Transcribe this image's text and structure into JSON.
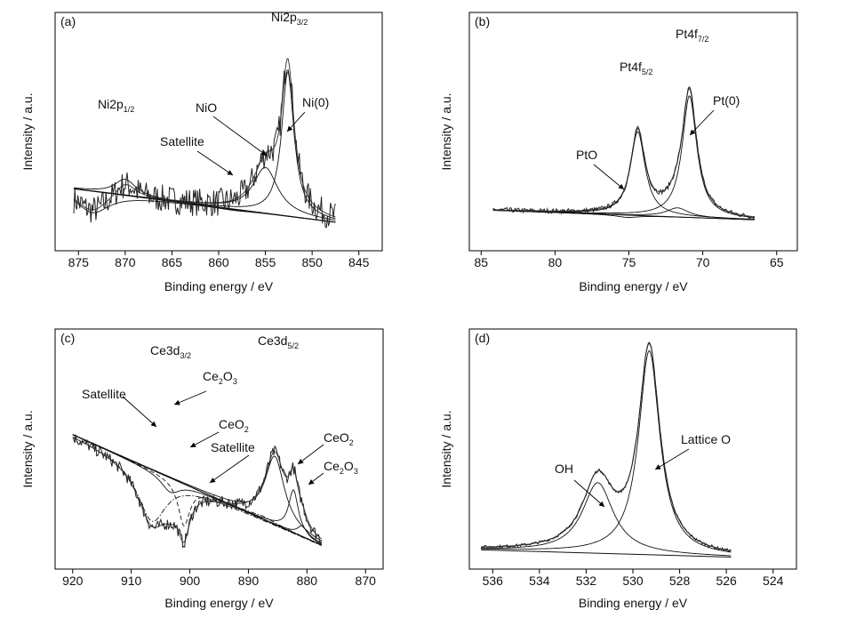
{
  "chart_data": [
    {
      "type": "line",
      "panel_label": "(a)",
      "xlabel": "Binding energy / eV",
      "ylabel": "Intensity / a.u.",
      "xlim": [
        877.5,
        842.5
      ],
      "ylim": [
        0,
        100
      ],
      "x_reversed": true,
      "xticks": [
        875,
        870,
        865,
        860,
        855,
        850,
        845
      ],
      "grid": false,
      "baseline": [
        [
          875.5,
          26
        ],
        [
          847.5,
          12
        ]
      ],
      "series": [
        {
          "name": "Ni(0)",
          "peak_x": 852.6,
          "peak_y": 75,
          "width": 0.8
        },
        {
          "name": "NiO",
          "peak_x": 855.0,
          "peak_y": 35,
          "width": 1.6
        },
        {
          "name": "Satellite",
          "peak_x": 858.5,
          "peak_y": 17,
          "width": 2.5
        },
        {
          "name": "Ni2p1/2",
          "peak_x": 870.0,
          "peak_y": 30,
          "width": 1.4
        },
        {
          "name": "",
          "peak_x": 873.5,
          "peak_y": 16,
          "width": 2.2
        }
      ],
      "annotations": [
        {
          "label": "Ni2p",
          "sub": "3/2",
          "x": 852.6,
          "y": 95
        },
        {
          "label": "Ni(0)",
          "x": 852.6,
          "y": 50
        },
        {
          "label": "NiO",
          "x": 855.0,
          "y": 60
        },
        {
          "label": "Satellite",
          "x": 858.5,
          "y": 42
        },
        {
          "label": "Ni2p",
          "sub": "1/2",
          "x": 870.0,
          "y": 60
        }
      ]
    },
    {
      "type": "line",
      "panel_label": "(b)",
      "xlabel": "Binding energy / eV",
      "ylabel": "Intensity / a.u.",
      "xlim": [
        85.8,
        63.6
      ],
      "ylim": [
        0,
        100
      ],
      "x_reversed": true,
      "xticks": [
        85,
        80,
        75,
        70,
        65
      ],
      "grid": false,
      "baseline": [
        [
          84.2,
          17
        ],
        [
          66.5,
          13
        ]
      ],
      "series": [
        {
          "name": "Pt(0)",
          "peak_x": 70.9,
          "peak_y": 65,
          "width": 0.6
        },
        {
          "name": "Pt4f5/2",
          "peak_x": 74.4,
          "peak_y": 50,
          "width": 0.6
        },
        {
          "name": "PtO",
          "peak_x": 75.1,
          "peak_y": 14,
          "width": 0.9
        },
        {
          "name": "",
          "peak_x": 71.7,
          "peak_y": 18,
          "width": 0.9
        }
      ],
      "annotations": [
        {
          "label": "Pt4f",
          "sub": "7/2",
          "x": 70.9,
          "y": 95
        },
        {
          "label": "Pt4f",
          "sub": "5/2",
          "x": 74.4,
          "y": 80
        },
        {
          "label": "Pt(0)",
          "x": 70.9,
          "y": 65
        },
        {
          "label": "PtO",
          "x": 75.1,
          "y": 40
        }
      ]
    },
    {
      "type": "line",
      "panel_label": "(c)",
      "xlabel": "Binding energy / eV",
      "ylabel": "Intensity / a.u.",
      "xlim": [
        923,
        867
      ],
      "ylim": [
        0,
        100
      ],
      "x_reversed": true,
      "xticks": [
        920,
        910,
        900,
        890,
        880,
        870
      ],
      "grid": false,
      "baseline": [
        [
          920,
          56
        ],
        [
          877.5,
          10
        ]
      ],
      "series": [
        {
          "name": "Ce3d5/2",
          "peak_x": 885.5,
          "peak_y": 47,
          "width": 2.0
        },
        {
          "name": "CeO2",
          "peak_x": 882.3,
          "peak_y": 33,
          "width": 1.0
        },
        {
          "name": "Ce2O3",
          "peak_x": 880.8,
          "peak_y": 18,
          "width": 1.0
        },
        {
          "name": "Ce3d3/2",
          "peak_x": 903.3,
          "peak_y": 32,
          "width": 2.0
        },
        {
          "name": "CeO2",
          "peak_x": 901.0,
          "peak_y": 18,
          "width": 1.2
        },
        {
          "name": "Satellite",
          "peak_x": 906.5,
          "peak_y": 20,
          "width": 3.0
        },
        {
          "name": "Satellite",
          "peak_x": 887.5,
          "peak_y": 22,
          "width": 2.5
        }
      ],
      "annotations": [
        {
          "label": "Ce3d",
          "sub": "5/2",
          "x": 885.5,
          "y": 95
        },
        {
          "label": "Ce3d",
          "sub": "3/2",
          "x": 903.3,
          "y": 88
        },
        {
          "label": "Ce",
          "sub": "2",
          "tail": "O",
          "tail_sub": "3",
          "x": 901,
          "y": 75
        },
        {
          "label": "Satellite",
          "x": 913,
          "y": 70
        },
        {
          "label": "CeO",
          "sub": "2",
          "x": 899,
          "y": 55
        },
        {
          "label": "Satellite",
          "x": 893,
          "y": 45
        },
        {
          "label": "CeO",
          "sub": "2",
          "x": 879,
          "y": 50
        },
        {
          "label": "Ce",
          "sub": "2",
          "tail": "O",
          "tail_sub": "3",
          "x": 878,
          "y": 38
        }
      ]
    },
    {
      "type": "line",
      "panel_label": "(d)",
      "xlabel": "Binding energy / eV",
      "ylabel": "Intensity / a.u.",
      "xlim": [
        537,
        523
      ],
      "ylim": [
        0,
        100
      ],
      "x_reversed": true,
      "xticks": [
        536,
        534,
        532,
        530,
        528,
        526,
        524
      ],
      "grid": false,
      "baseline": [
        [
          536.5,
          8
        ],
        [
          525.8,
          5
        ]
      ],
      "series": [
        {
          "name": "Lattice O",
          "peak_x": 529.3,
          "peak_y": 91,
          "width": 0.55
        },
        {
          "name": "OH",
          "peak_x": 531.5,
          "peak_y": 36,
          "width": 0.8
        }
      ],
      "annotations": [
        {
          "label": "Lattice O",
          "x": 529.3,
          "y": 60
        },
        {
          "label": "OH",
          "x": 531.5,
          "y": 45
        }
      ]
    }
  ]
}
